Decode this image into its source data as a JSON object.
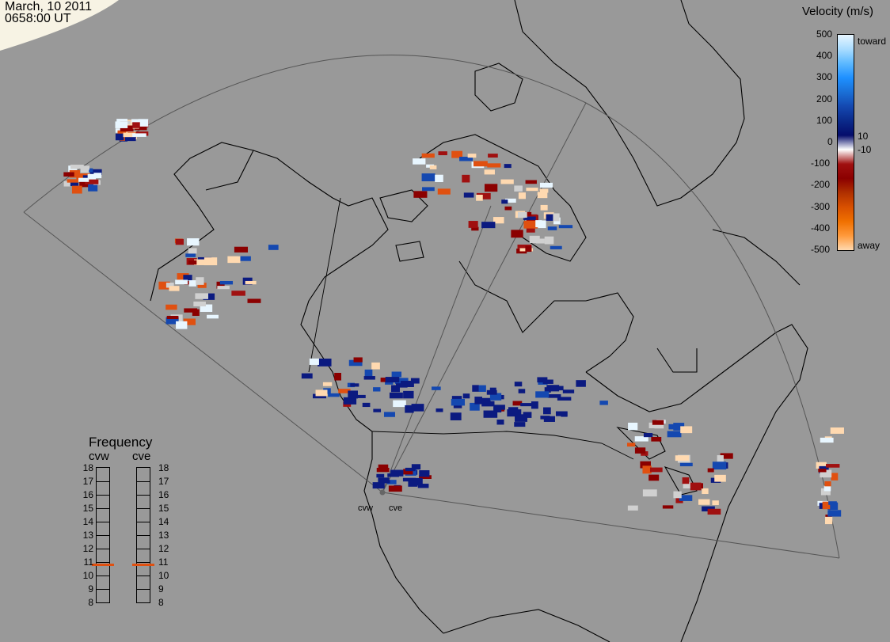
{
  "timestamp": {
    "date": "March, 10 2011",
    "time": "0658:00 UT"
  },
  "colorbar": {
    "title": "Velocity (m/s)",
    "ticks": [
      "500",
      "400",
      "300",
      "200",
      "100",
      "0",
      "-100",
      "-200",
      "-300",
      "-400",
      "-500"
    ],
    "label_toward": "toward",
    "label_away": "away",
    "label_pos10": "10",
    "label_neg10": "-10",
    "colors": [
      "#e8f6ff",
      "#a9dcff",
      "#5cb8ff",
      "#1e90ff",
      "#1a6fd6",
      "#1448b0",
      "#0b2a8a",
      "#050d6b",
      "#ffffff",
      "#a01010",
      "#8b0000",
      "#b03000",
      "#d85000",
      "#f07000",
      "#ff9a3c",
      "#ffd9b0"
    ]
  },
  "frequency": {
    "title": "Frequency",
    "radars": [
      {
        "name": "cvw",
        "value": 10.8
      },
      {
        "name": "cve",
        "value": 10.8
      }
    ],
    "scale": [
      "18",
      "17",
      "16",
      "15",
      "14",
      "13",
      "12",
      "11",
      "10",
      "9",
      "8"
    ],
    "marker_color": "#e05010"
  },
  "sites": [
    {
      "name": "cvw"
    },
    {
      "name": "cve"
    }
  ],
  "map": {
    "background": "#999999",
    "coast_color": "#000000",
    "fov_color": "#555555",
    "night_color": "#f5f0e0"
  }
}
